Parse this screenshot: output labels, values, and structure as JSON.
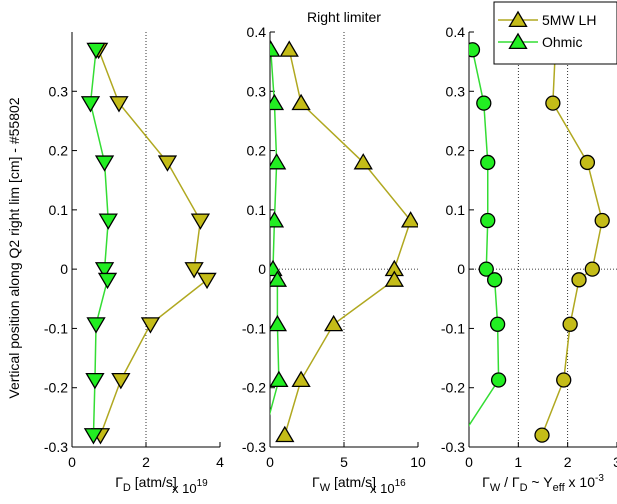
{
  "figure": {
    "shared_ylabel": "Vertical position along Q2 right lim [cm] - #55802",
    "colors": {
      "lhcd": "#c4bc18",
      "lhcd_line": "#b0a820",
      "ohmic": "#22ee22",
      "ohmic_line": "#33dd33",
      "marker_edge": "#000000",
      "grid": "#000000",
      "axis": "#000000"
    }
  },
  "chart_data": [
    {
      "type": "line",
      "title": "",
      "xlabel": "Γ_D [atm/s]",
      "xlabel_parts": [
        "Γ",
        "D",
        " [atm/s]"
      ],
      "xexponent": "x 10",
      "xexponent_power": "19",
      "ylabel": "Vertical position along Q2 right lim [cm] - #55802",
      "xlim": [
        0,
        4
      ],
      "ylim": [
        -0.3,
        0.4
      ],
      "xticks": [
        "0",
        "2",
        "4"
      ],
      "xtick_values": [
        0,
        2,
        4
      ],
      "yticks": [
        "-0.3",
        "-0.2",
        "-0.1",
        "0",
        "0.1",
        "0.2",
        "0.3"
      ],
      "ytick_values": [
        -0.3,
        -0.2,
        -0.1,
        0,
        0.1,
        0.2,
        0.3
      ],
      "xgrid": [
        2
      ],
      "ygrid": [],
      "series": [
        {
          "key": "lhcd",
          "marker": "triangle-down",
          "x": [
            0.72,
            1.27,
            2.58,
            3.47,
            3.3,
            3.65,
            2.12,
            1.32,
            0.77
          ],
          "y": [
            0.37,
            0.28,
            0.18,
            0.082,
            0.0,
            -0.018,
            -0.093,
            -0.187,
            -0.28
          ]
        },
        {
          "key": "ohmic",
          "marker": "triangle-down",
          "x": [
            0.65,
            0.5,
            0.88,
            0.98,
            0.88,
            0.96,
            0.65,
            0.62,
            0.58
          ],
          "y": [
            0.37,
            0.28,
            0.18,
            0.082,
            0.0,
            -0.018,
            -0.093,
            -0.187,
            -0.28
          ]
        }
      ]
    },
    {
      "type": "line",
      "title": "Right limiter",
      "xlabel": "Γ_W [atm/s]",
      "xlabel_parts": [
        "Γ",
        "W",
        " [atm/s]"
      ],
      "xexponent": "x 10",
      "xexponent_power": "16",
      "xlim": [
        0,
        10
      ],
      "ylim": [
        -0.3,
        0.4
      ],
      "xticks": [
        "0",
        "5",
        "10"
      ],
      "xtick_values": [
        0,
        5,
        10
      ],
      "yticks": [
        "-0.3",
        "-0.2",
        "-0.1",
        "0",
        "0.1",
        "0.2",
        "0.3",
        "0.4"
      ],
      "ytick_values": [
        -0.3,
        -0.2,
        -0.1,
        0,
        0.1,
        0.2,
        0.3,
        0.4
      ],
      "xgrid": [
        5
      ],
      "ygrid": [
        0
      ],
      "series": [
        {
          "key": "lhcd",
          "marker": "triangle-up",
          "x": [
            1.3,
            2.1,
            6.3,
            9.5,
            8.4,
            8.4,
            4.3,
            2.1,
            1.0
          ],
          "y": [
            0.37,
            0.28,
            0.18,
            0.082,
            0.0,
            -0.018,
            -0.093,
            -0.187,
            -0.28
          ]
        },
        {
          "key": "ohmic",
          "marker": "triangle-up",
          "x": [
            0.05,
            0.3,
            0.45,
            0.3,
            0.2,
            0.5,
            0.5,
            0.6,
            -0.3
          ],
          "y": [
            0.37,
            0.28,
            0.18,
            0.082,
            0.0,
            -0.018,
            -0.093,
            -0.187,
            -0.27
          ]
        }
      ]
    },
    {
      "type": "line",
      "title": "",
      "xlabel": "Γ_W / Γ_D ~ Y_eff x 10^-3",
      "xlabel_parts": [
        "Γ",
        "W",
        " / Γ",
        "D",
        " ~ Y",
        "eff",
        " x 10",
        "-3"
      ],
      "xlim": [
        0,
        3
      ],
      "ylim": [
        -0.3,
        0.4
      ],
      "xticks": [
        "0",
        "1",
        "2",
        "3"
      ],
      "xtick_values": [
        0,
        1,
        2,
        3
      ],
      "yticks": [
        "-0.3",
        "-0.2",
        "-0.1",
        "0",
        "0.1",
        "0.2",
        "0.3",
        "0.4"
      ],
      "ytick_values": [
        -0.3,
        -0.2,
        -0.1,
        0,
        0.1,
        0.2,
        0.3,
        0.4
      ],
      "xgrid": [
        1,
        2
      ],
      "ygrid": [
        0
      ],
      "legend": {
        "position": "top-right",
        "entries": [
          {
            "key": "lhcd",
            "label": "5MW LH"
          },
          {
            "key": "ohmic",
            "label": "Ohmic"
          }
        ]
      },
      "series": [
        {
          "key": "lhcd",
          "marker": "circle",
          "x": [
            1.75,
            1.7,
            2.4,
            2.7,
            2.5,
            2.23,
            2.05,
            1.92,
            1.48
          ],
          "y": [
            0.37,
            0.28,
            0.18,
            0.082,
            0.0,
            -0.018,
            -0.093,
            -0.187,
            -0.28
          ]
        },
        {
          "key": "ohmic",
          "marker": "circle",
          "x": [
            0.07,
            0.3,
            0.38,
            0.38,
            0.35,
            0.52,
            0.58,
            0.6,
            -0.05
          ],
          "y": [
            0.37,
            0.28,
            0.18,
            0.082,
            0.0,
            -0.018,
            -0.093,
            -0.187,
            -0.27
          ]
        }
      ]
    }
  ]
}
